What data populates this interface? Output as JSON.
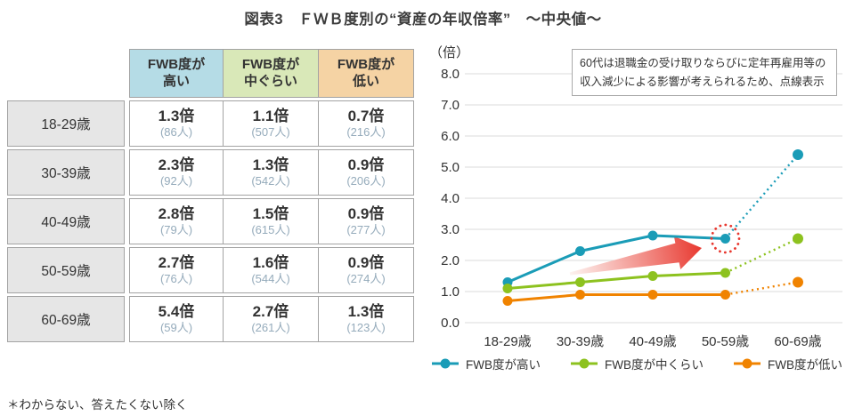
{
  "title": "図表3　ＦＷＢ度別の“資産の年収倍率”　～中央値～",
  "footnote": "＊わからない、答えたくない除く",
  "colors": {
    "series_high": "#1a9cb7",
    "series_mid": "#8dc21f",
    "series_low": "#f08300",
    "highlight_red": "#e8382f",
    "grid": "#dbdbdb",
    "count_text": "#95abbb"
  },
  "table": {
    "col_headers": [
      {
        "line1": "FWB度が",
        "line2": "高い",
        "bg": "#b5dce6"
      },
      {
        "line1": "FWB度が",
        "line2": "中ぐらい",
        "bg": "#d9e8b8"
      },
      {
        "line1": "FWB度が",
        "line2": "低い",
        "bg": "#f5d3a4"
      }
    ],
    "rows": [
      {
        "label": "18-29歳",
        "cells": [
          {
            "value": "1.3倍",
            "count": "(86人)"
          },
          {
            "value": "1.1倍",
            "count": "(507人)"
          },
          {
            "value": "0.7倍",
            "count": "(216人)"
          }
        ]
      },
      {
        "label": "30-39歳",
        "cells": [
          {
            "value": "2.3倍",
            "count": "(92人)"
          },
          {
            "value": "1.3倍",
            "count": "(542人)"
          },
          {
            "value": "0.9倍",
            "count": "(206人)"
          }
        ]
      },
      {
        "label": "40-49歳",
        "cells": [
          {
            "value": "2.8倍",
            "count": "(79人)"
          },
          {
            "value": "1.5倍",
            "count": "(615人)"
          },
          {
            "value": "0.9倍",
            "count": "(277人)"
          }
        ]
      },
      {
        "label": "50-59歳",
        "cells": [
          {
            "value": "2.7倍",
            "count": "(76人)"
          },
          {
            "value": "1.6倍",
            "count": "(544人)"
          },
          {
            "value": "0.9倍",
            "count": "(274人)"
          }
        ]
      },
      {
        "label": "60-69歳",
        "cells": [
          {
            "value": "5.4倍",
            "count": "(59人)"
          },
          {
            "value": "2.7倍",
            "count": "(261人)"
          },
          {
            "value": "1.3倍",
            "count": "(123人)"
          }
        ]
      }
    ]
  },
  "chart_data": {
    "type": "line",
    "unit_label": "（倍）",
    "categories": [
      "18-29歳",
      "30-39歳",
      "40-49歳",
      "50-59歳",
      "60-69歳"
    ],
    "series": [
      {
        "name": "FWB度が高い",
        "color": "#1a9cb7",
        "values": [
          1.3,
          2.3,
          2.8,
          2.7,
          5.4
        ],
        "dotted_from_index": 3
      },
      {
        "name": "FWB度が中くらい",
        "color": "#8dc21f",
        "values": [
          1.1,
          1.3,
          1.5,
          1.6,
          2.7
        ],
        "dotted_from_index": 3
      },
      {
        "name": "FWB度が低い",
        "color": "#f08300",
        "values": [
          0.7,
          0.9,
          0.9,
          0.9,
          1.3
        ],
        "dotted_from_index": 3
      }
    ],
    "ylim": [
      0,
      8
    ],
    "ytick_step": 1,
    "grid": true,
    "legend_position": "bottom",
    "annotation": "60代は退職金の受け取りならびに定年再雇用等の収入減少による影響が考えられるため、点線表示",
    "highlight_circle": {
      "series": "FWB度が高い",
      "category": "50-59歳",
      "color": "#e8382f"
    },
    "trend_arrow": {
      "color": "#e8382f"
    }
  }
}
